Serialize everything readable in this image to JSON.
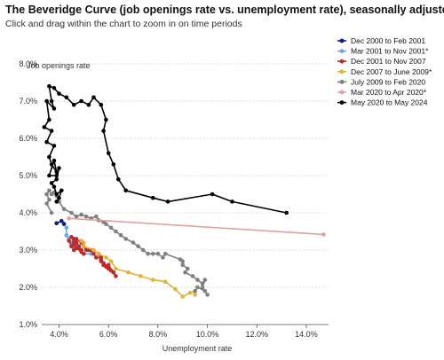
{
  "header": {
    "title": "The Beveridge Curve (job openings rate vs. unemployment rate), seasonally adjusted",
    "subtitle": "Click and drag within the chart to zoom in on time periods"
  },
  "chart_data": {
    "type": "line",
    "xlabel": "Unemployment rate",
    "ylabel": "Job openings rate",
    "xlim": [
      3.3,
      14.9
    ],
    "ylim": [
      1.0,
      8.0
    ],
    "xticks": [
      "4.0%",
      "6.0%",
      "8.0%",
      "10.0%",
      "12.0%",
      "14.0%"
    ],
    "yticks": [
      "1.0%",
      "2.0%",
      "3.0%",
      "4.0%",
      "5.0%",
      "6.0%",
      "7.0%",
      "8.0%"
    ],
    "grid": "horizontal-dotted",
    "legend_position": "top-right",
    "series": [
      {
        "name": "Dec 2000 to Feb 2001",
        "color": "#0b1a8c",
        "points": [
          [
            3.9,
            3.72
          ],
          [
            4.1,
            3.78
          ],
          [
            4.2,
            3.7
          ]
        ]
      },
      {
        "name": "Mar 2001 to Nov 2001*",
        "color": "#6fa6e3",
        "points": [
          [
            4.3,
            3.6
          ],
          [
            4.3,
            3.4
          ],
          [
            4.4,
            3.3
          ],
          [
            4.5,
            3.2
          ],
          [
            4.6,
            3.1
          ],
          [
            4.7,
            3.1
          ],
          [
            4.9,
            3.0
          ],
          [
            5.0,
            2.9
          ],
          [
            5.3,
            2.9
          ]
        ]
      },
      {
        "name": "Dec 2001 to Nov 2007",
        "color": "#c0282a",
        "points": [
          [
            5.6,
            2.9
          ],
          [
            5.7,
            2.75
          ],
          [
            5.8,
            2.6
          ],
          [
            5.9,
            2.55
          ],
          [
            5.8,
            2.65
          ],
          [
            5.7,
            2.7
          ],
          [
            6.0,
            2.5
          ],
          [
            6.1,
            2.45
          ],
          [
            6.3,
            2.3
          ],
          [
            6.2,
            2.4
          ],
          [
            6.0,
            2.6
          ],
          [
            5.8,
            2.6
          ],
          [
            5.7,
            2.8
          ],
          [
            5.5,
            2.8
          ],
          [
            5.4,
            2.9
          ],
          [
            5.3,
            3.0
          ],
          [
            5.2,
            3.0
          ],
          [
            5.1,
            3.0
          ],
          [
            5.0,
            3.1
          ],
          [
            4.9,
            3.2
          ],
          [
            4.7,
            3.3
          ],
          [
            4.6,
            3.3
          ],
          [
            4.5,
            3.35
          ],
          [
            4.6,
            3.2
          ],
          [
            4.5,
            3.1
          ],
          [
            4.4,
            3.25
          ],
          [
            4.6,
            3.0
          ],
          [
            4.8,
            3.1
          ],
          [
            4.7,
            3.2
          ],
          [
            4.9,
            3.0
          ],
          [
            5.0,
            2.9
          ],
          [
            4.6,
            3.15
          ],
          [
            4.7,
            3.05
          ],
          [
            4.9,
            2.95
          ],
          [
            4.8,
            3.1
          ],
          [
            4.7,
            3.2
          ]
        ]
      },
      {
        "name": "Dec 2007 to June 2009*",
        "color": "#e0b43a",
        "points": [
          [
            4.9,
            3.25
          ],
          [
            5.0,
            3.2
          ],
          [
            5.0,
            3.1
          ],
          [
            5.4,
            3.0
          ],
          [
            5.6,
            2.9
          ],
          [
            5.9,
            2.8
          ],
          [
            6.1,
            2.7
          ],
          [
            6.3,
            2.5
          ],
          [
            6.8,
            2.4
          ],
          [
            7.3,
            2.3
          ],
          [
            7.8,
            2.2
          ],
          [
            8.3,
            2.15
          ],
          [
            8.7,
            1.95
          ],
          [
            9.0,
            1.75
          ],
          [
            9.3,
            1.85
          ],
          [
            9.5,
            1.9
          ],
          [
            9.5,
            1.8
          ]
        ]
      },
      {
        "name": "July 2009 to Feb 2020",
        "color": "#808080",
        "points": [
          [
            9.5,
            1.9
          ],
          [
            9.6,
            2.0
          ],
          [
            9.9,
            1.9
          ],
          [
            10.0,
            1.8
          ],
          [
            9.8,
            2.0
          ],
          [
            9.9,
            2.2
          ],
          [
            9.8,
            2.1
          ],
          [
            9.6,
            2.2
          ],
          [
            9.4,
            2.3
          ],
          [
            9.1,
            2.4
          ],
          [
            9.2,
            2.5
          ],
          [
            9.0,
            2.6
          ],
          [
            9.0,
            2.7
          ],
          [
            8.9,
            2.75
          ],
          [
            8.3,
            2.9
          ],
          [
            8.2,
            2.8
          ],
          [
            8.0,
            2.9
          ],
          [
            7.8,
            2.9
          ],
          [
            7.6,
            2.9
          ],
          [
            7.4,
            3.0
          ],
          [
            7.2,
            3.1
          ],
          [
            7.0,
            3.2
          ],
          [
            6.7,
            3.3
          ],
          [
            6.5,
            3.4
          ],
          [
            6.3,
            3.5
          ],
          [
            6.1,
            3.6
          ],
          [
            5.9,
            3.7
          ],
          [
            5.8,
            3.75
          ],
          [
            5.6,
            3.8
          ],
          [
            5.5,
            3.9
          ],
          [
            5.3,
            3.85
          ],
          [
            5.1,
            3.9
          ],
          [
            4.9,
            3.95
          ],
          [
            4.7,
            3.9
          ],
          [
            4.5,
            4.0
          ],
          [
            4.2,
            4.1
          ],
          [
            4.0,
            4.3
          ],
          [
            3.9,
            4.45
          ],
          [
            3.8,
            4.55
          ],
          [
            3.7,
            4.5
          ],
          [
            3.6,
            4.6
          ],
          [
            3.5,
            4.5
          ],
          [
            3.6,
            4.35
          ],
          [
            3.5,
            4.25
          ],
          [
            3.7,
            4.0
          ]
        ]
      },
      {
        "name": "Mar 2020 to Apr 2020*",
        "color": "#e0a0a0",
        "points": [
          [
            4.4,
            3.85
          ],
          [
            14.7,
            3.42
          ]
        ]
      },
      {
        "name": "May 2020 to May 2024",
        "color": "#000000",
        "points": [
          [
            13.2,
            4.0
          ],
          [
            11.0,
            4.3
          ],
          [
            10.2,
            4.5
          ],
          [
            8.4,
            4.3
          ],
          [
            7.8,
            4.4
          ],
          [
            6.7,
            4.6
          ],
          [
            6.4,
            4.9
          ],
          [
            6.2,
            5.3
          ],
          [
            6.0,
            5.6
          ],
          [
            5.8,
            6.2
          ],
          [
            5.9,
            6.5
          ],
          [
            5.7,
            6.9
          ],
          [
            5.4,
            7.1
          ],
          [
            5.2,
            6.9
          ],
          [
            4.9,
            7.0
          ],
          [
            4.6,
            6.9
          ],
          [
            4.3,
            7.1
          ],
          [
            4.0,
            7.2
          ],
          [
            3.8,
            7.35
          ],
          [
            3.6,
            7.4
          ],
          [
            3.7,
            7.0
          ],
          [
            3.8,
            6.8
          ],
          [
            3.5,
            7.0
          ],
          [
            3.6,
            6.5
          ],
          [
            3.4,
            6.3
          ],
          [
            3.7,
            6.2
          ],
          [
            3.5,
            5.9
          ],
          [
            3.8,
            5.8
          ],
          [
            3.6,
            5.5
          ],
          [
            3.7,
            5.3
          ],
          [
            3.9,
            5.1
          ],
          [
            3.8,
            5.4
          ],
          [
            3.6,
            5.0
          ],
          [
            3.9,
            5.0
          ],
          [
            4.0,
            5.2
          ],
          [
            3.9,
            4.9
          ],
          [
            3.7,
            4.8
          ],
          [
            3.8,
            4.7
          ],
          [
            3.9,
            4.5
          ],
          [
            4.1,
            4.6
          ],
          [
            4.0,
            4.4
          ],
          [
            3.9,
            4.3
          ]
        ]
      }
    ]
  }
}
